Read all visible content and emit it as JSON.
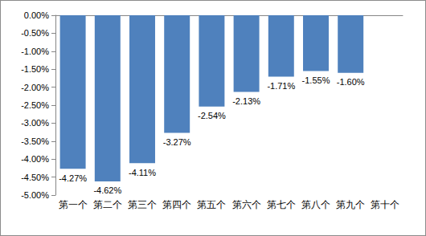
{
  "chart_data": {
    "type": "bar",
    "categories": [
      "第一个",
      "第二个",
      "第三个",
      "第四个",
      "第五个",
      "第六个",
      "第七个",
      "第八个",
      "第九个",
      "第十个"
    ],
    "values": [
      -4.27,
      -4.62,
      -4.11,
      -3.27,
      -2.54,
      -2.13,
      -1.71,
      -1.55,
      -1.6,
      null
    ],
    "value_labels": [
      "-4.27%",
      "-4.62%",
      "-4.11%",
      "-3.27%",
      "-2.54%",
      "-2.13%",
      "-1.71%",
      "-1.55%",
      "-1.60%",
      null
    ],
    "color": "#4f81bd",
    "ylim": [
      -5,
      0
    ],
    "yticks": [
      {
        "value": -5,
        "label": "-5.00%"
      },
      {
        "value": -4.5,
        "label": "-4.50%"
      },
      {
        "value": -4,
        "label": "-4.00%"
      },
      {
        "value": -3.5,
        "label": "-3.50%"
      },
      {
        "value": -3,
        "label": "-3.00%"
      },
      {
        "value": -2.5,
        "label": "-2.50%"
      },
      {
        "value": -2,
        "label": "-2.00%"
      },
      {
        "value": -1.5,
        "label": "-1.50%"
      },
      {
        "value": -1,
        "label": "-1.00%"
      },
      {
        "value": -0.5,
        "label": "-0.50%"
      },
      {
        "value": 0,
        "label": "0.00%"
      }
    ],
    "grid": false,
    "data_labels": true
  }
}
